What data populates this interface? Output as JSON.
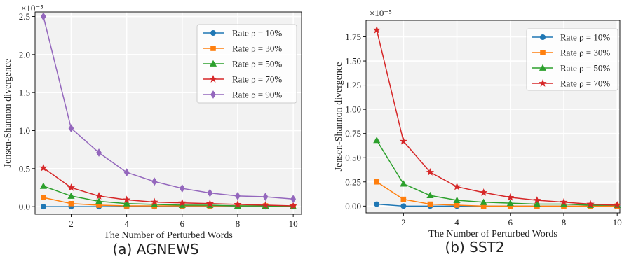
{
  "chart_data": [
    {
      "type": "line",
      "xlabel": "The Number of Perturbed Words",
      "ylabel": "Jensen-Shannon divergence",
      "scale_label": "×10⁻⁵",
      "caption": "(a) AGNEWS",
      "x": [
        1,
        2,
        3,
        4,
        5,
        6,
        7,
        8,
        9,
        10
      ],
      "xlim": [
        0.7,
        10.3
      ],
      "ylim": [
        -0.1,
        2.56
      ],
      "xticks": [
        2,
        4,
        6,
        8,
        10
      ],
      "yticks": [
        0.0,
        0.5,
        1.0,
        1.5,
        2.0,
        2.5
      ],
      "ytick_labels": [
        "0.0",
        "0.5",
        "1.0",
        "1.5",
        "2.0",
        "2.5"
      ],
      "grid": true,
      "legend_position": "top-right",
      "series": [
        {
          "name": "Rate ρ = 10%",
          "color": "#1f77b4",
          "marker": "circle",
          "values": [
            0.0,
            0.0,
            0.0,
            0.0,
            0.0,
            0.0,
            0.0,
            0.0,
            0.0,
            0.0
          ]
        },
        {
          "name": "Rate ρ = 30%",
          "color": "#ff7f0e",
          "marker": "square",
          "values": [
            0.12,
            0.04,
            0.02,
            0.01,
            0.01,
            0.01,
            0.01,
            0.01,
            0.01,
            0.0
          ]
        },
        {
          "name": "Rate ρ = 50%",
          "color": "#2ca02c",
          "marker": "triangle",
          "values": [
            0.27,
            0.14,
            0.07,
            0.04,
            0.03,
            0.02,
            0.02,
            0.01,
            0.01,
            0.0
          ]
        },
        {
          "name": "Rate ρ = 70%",
          "color": "#d62728",
          "marker": "star",
          "values": [
            0.51,
            0.25,
            0.14,
            0.09,
            0.06,
            0.05,
            0.04,
            0.03,
            0.02,
            0.01
          ]
        },
        {
          "name": "Rate ρ = 90%",
          "color": "#9467bd",
          "marker": "diamond",
          "values": [
            2.5,
            1.03,
            0.71,
            0.45,
            0.33,
            0.24,
            0.18,
            0.14,
            0.13,
            0.1
          ]
        }
      ]
    },
    {
      "type": "line",
      "xlabel": "The Number of Perturbed Words",
      "ylabel": "Jensen-Shannon divergence",
      "scale_label": "×10⁻⁵",
      "caption": "(b) SST2",
      "x": [
        1,
        2,
        3,
        4,
        5,
        6,
        7,
        8,
        9,
        10
      ],
      "xlim": [
        0.6,
        10.1
      ],
      "ylim": [
        -0.07,
        1.92
      ],
      "xticks": [
        2,
        4,
        6,
        8,
        10
      ],
      "yticks": [
        0.0,
        0.25,
        0.5,
        0.75,
        1.0,
        1.25,
        1.5,
        1.75
      ],
      "ytick_labels": [
        "0.00",
        "0.25",
        "0.50",
        "0.75",
        "1.00",
        "1.25",
        "1.50",
        "1.75"
      ],
      "grid": true,
      "legend_position": "top-right",
      "series": [
        {
          "name": "Rate ρ = 10%",
          "color": "#1f77b4",
          "marker": "circle",
          "values": [
            0.02,
            0.0,
            0.0,
            0.0,
            0.0,
            0.0,
            0.0,
            0.0,
            0.0,
            0.0
          ]
        },
        {
          "name": "Rate ρ = 30%",
          "color": "#ff7f0e",
          "marker": "square",
          "values": [
            0.25,
            0.07,
            0.02,
            0.01,
            0.0,
            0.0,
            0.0,
            0.0,
            0.0,
            0.0
          ]
        },
        {
          "name": "Rate ρ = 50%",
          "color": "#2ca02c",
          "marker": "triangle",
          "values": [
            0.68,
            0.23,
            0.11,
            0.06,
            0.04,
            0.03,
            0.02,
            0.02,
            0.01,
            0.01
          ]
        },
        {
          "name": "Rate ρ = 70%",
          "color": "#d62728",
          "marker": "star",
          "values": [
            1.82,
            0.67,
            0.35,
            0.2,
            0.14,
            0.09,
            0.06,
            0.04,
            0.02,
            0.01
          ]
        }
      ]
    }
  ]
}
